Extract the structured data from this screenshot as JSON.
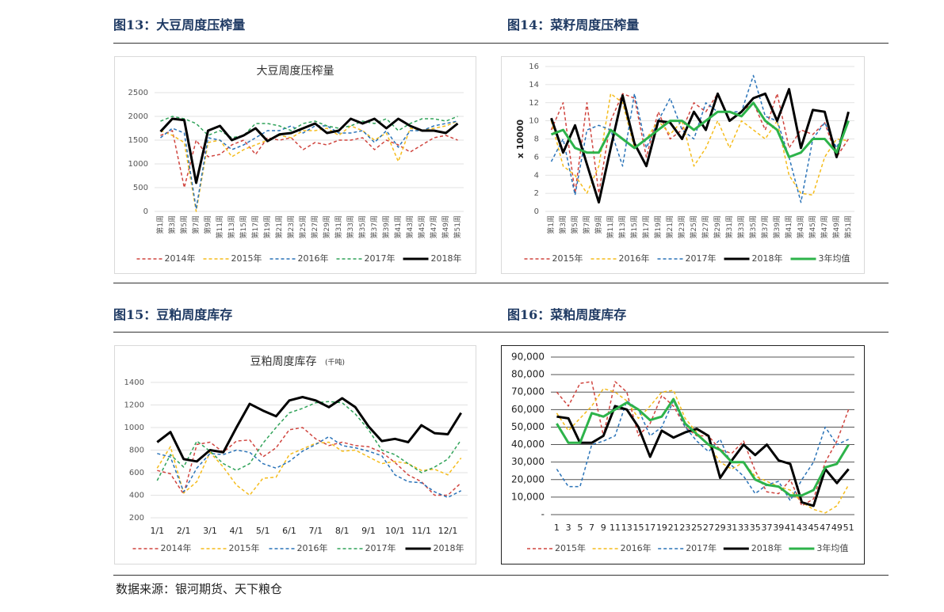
{
  "captions": [
    "图13：大豆周度压榨量",
    "图14：菜籽周度压榨量",
    "图15：豆粕周度库存",
    "图16：菜粕周度库存"
  ],
  "source": "数据来源：银河期货、天下粮仓",
  "chart_data": [
    {
      "type": "line",
      "title": "大豆周度压榨量",
      "categories": [
        "第1周",
        "第3周",
        "第5周",
        "第7周",
        "第9周",
        "第11周",
        "第13周",
        "第15周",
        "第17周",
        "第19周",
        "第21周",
        "第23周",
        "第25周",
        "第27周",
        "第29周",
        "第31周",
        "第33周",
        "第35周",
        "第37周",
        "第39周",
        "第41周",
        "第43周",
        "第45周",
        "第47周",
        "第49周",
        "第51周"
      ],
      "ylim": [
        0,
        2500
      ],
      "yticks": [
        0,
        500,
        1000,
        1500,
        2000,
        2500
      ],
      "grid": true,
      "series": [
        {
          "name": "2014年",
          "color": "#d0453f",
          "dashed": true,
          "values": [
            1600,
            1700,
            500,
            1500,
            1150,
            1200,
            1400,
            1500,
            1200,
            1550,
            1500,
            1550,
            1300,
            1450,
            1400,
            1500,
            1500,
            1550,
            1300,
            1500,
            1400,
            1250,
            1400,
            1550,
            1600,
            1500
          ]
        },
        {
          "name": "2015年",
          "color": "#f5bc1c",
          "dashed": true,
          "values": [
            1700,
            1600,
            1450,
            0,
            1450,
            1500,
            1150,
            1300,
            1400,
            1500,
            1600,
            1550,
            1700,
            1700,
            1750,
            1600,
            1800,
            1700,
            1500,
            1650,
            1050,
            1750,
            1700,
            1750,
            1800,
            1900
          ]
        },
        {
          "name": "2016年",
          "color": "#2a73b8",
          "dashed": true,
          "values": [
            1550,
            1750,
            1650,
            50,
            1550,
            1500,
            1300,
            1400,
            1550,
            1700,
            1700,
            1800,
            1650,
            1800,
            1800,
            1650,
            1650,
            1700,
            1450,
            1700,
            1350,
            1700,
            1700,
            1800,
            1850,
            1900
          ]
        },
        {
          "name": "2017年",
          "color": "#31a35a",
          "dashed": true,
          "values": [
            1900,
            2000,
            1950,
            1850,
            1600,
            1700,
            1550,
            1600,
            1850,
            1850,
            1800,
            1700,
            1850,
            1900,
            1800,
            1750,
            1800,
            1900,
            1850,
            1950,
            1700,
            1850,
            1950,
            1950,
            1900,
            2000
          ]
        },
        {
          "name": "2018年",
          "color": "#000000",
          "dashed": false,
          "values": [
            1680,
            1950,
            1920,
            600,
            1700,
            1800,
            1500,
            1600,
            1750,
            1480,
            1620,
            1650,
            1750,
            1850,
            1650,
            1700,
            1950,
            1850,
            1950,
            1750,
            1950,
            1800,
            1700,
            1700,
            1650,
            1850
          ]
        }
      ]
    },
    {
      "type": "line",
      "y_label": "x 10000",
      "categories": [
        "第1周",
        "第3周",
        "第5周",
        "第7周",
        "第9周",
        "第11周",
        "第13周",
        "第15周",
        "第17周",
        "第19周",
        "第21周",
        "第23周",
        "第25周",
        "第27周",
        "第29周",
        "第31周",
        "第33周",
        "第35周",
        "第37周",
        "第39周",
        "第41周",
        "第43周",
        "第45周",
        "第47周",
        "第49周",
        "第51周"
      ],
      "ylim": [
        0,
        16
      ],
      "yticks": [
        0,
        2,
        4,
        6,
        8,
        10,
        12,
        14,
        16
      ],
      "grid": true,
      "series": [
        {
          "name": "2015年",
          "color": "#d0453f",
          "dashed": true,
          "values": [
            9,
            12,
            2,
            12,
            2,
            10,
            13,
            12.5,
            6,
            11,
            8,
            9,
            12,
            11,
            13,
            10,
            11,
            12,
            9,
            13,
            7,
            9,
            8.5,
            9.8,
            6,
            8
          ]
        },
        {
          "name": "2016年",
          "color": "#f5bc1c",
          "dashed": true,
          "values": [
            10,
            5,
            4,
            2,
            5,
            13,
            12,
            7,
            8,
            10,
            8.5,
            10,
            5,
            7,
            10,
            7,
            10,
            9,
            8,
            10,
            4,
            2,
            1.8,
            6,
            8,
            7.8
          ]
        },
        {
          "name": "2017年",
          "color": "#2a73b8",
          "dashed": true,
          "values": [
            5.5,
            8,
            1.8,
            9,
            9.5,
            9,
            5,
            13,
            7,
            10,
            12.5,
            9,
            8,
            12,
            11,
            11,
            11,
            15,
            10.5,
            10,
            6,
            1,
            8,
            9.8,
            7,
            10
          ]
        },
        {
          "name": "2018年",
          "color": "#000000",
          "dashed": false,
          "values": [
            10.3,
            6.5,
            9.5,
            5.2,
            1,
            7,
            12.8,
            7.5,
            5,
            10,
            9.8,
            8,
            11,
            9,
            13,
            10,
            11,
            12.5,
            13,
            10,
            13.5,
            7,
            11.2,
            11,
            6,
            11
          ]
        },
        {
          "name": "3年均值",
          "color": "#2db34a",
          "dashed": false,
          "values": [
            8.5,
            9,
            7,
            6.5,
            6.5,
            9,
            8,
            7,
            8,
            9,
            10,
            10,
            9,
            10,
            11,
            11,
            10.5,
            12,
            10,
            9,
            6,
            6.5,
            8,
            8,
            6.5,
            10
          ]
        }
      ]
    },
    {
      "type": "line",
      "title": "豆粕周度库存",
      "subtitle": "(千吨)",
      "categories": [
        "1/1",
        null,
        "2/1",
        null,
        "3/1",
        null,
        "4/1",
        null,
        "5/1",
        null,
        "6/1",
        null,
        "7/1",
        null,
        "8/1",
        null,
        "9/1",
        null,
        "10/1",
        null,
        "11/1",
        null,
        "12/1",
        null
      ],
      "ylim": [
        200,
        1400
      ],
      "yticks": [
        200,
        400,
        600,
        800,
        1000,
        1200,
        1400
      ],
      "grid": true,
      "series": [
        {
          "name": "2014年",
          "color": "#d0453f",
          "dashed": true,
          "values": [
            620,
            590,
            410,
            850,
            870,
            780,
            880,
            890,
            740,
            820,
            980,
            1000,
            900,
            840,
            870,
            840,
            830,
            780,
            690,
            580,
            520,
            400,
            400,
            510
          ]
        },
        {
          "name": "2015年",
          "color": "#f5bc1c",
          "dashed": true,
          "values": [
            640,
            830,
            420,
            520,
            780,
            650,
            490,
            400,
            550,
            560,
            760,
            810,
            860,
            870,
            790,
            800,
            740,
            680,
            700,
            680,
            620,
            630,
            580,
            730
          ]
        },
        {
          "name": "2016年",
          "color": "#2a73b8",
          "dashed": true,
          "values": [
            770,
            740,
            430,
            640,
            770,
            760,
            800,
            780,
            680,
            640,
            700,
            790,
            850,
            920,
            840,
            820,
            790,
            750,
            580,
            520,
            510,
            430,
            380,
            440
          ]
        },
        {
          "name": "2017年",
          "color": "#31a35a",
          "dashed": true,
          "values": [
            530,
            760,
            650,
            880,
            790,
            680,
            620,
            680,
            860,
            1000,
            1130,
            1170,
            1220,
            1230,
            1220,
            1120,
            980,
            800,
            760,
            680,
            600,
            650,
            720,
            890
          ]
        },
        {
          "name": "2018年",
          "color": "#000000",
          "dashed": false,
          "values": [
            870,
            960,
            720,
            700,
            800,
            780,
            1000,
            1210,
            1150,
            1100,
            1240,
            1270,
            1240,
            1180,
            1260,
            1180,
            1010,
            880,
            900,
            870,
            1020,
            950,
            940,
            1130
          ]
        }
      ]
    },
    {
      "type": "line",
      "categories": [
        "1",
        "3",
        "5",
        "7",
        "9",
        "11",
        "13",
        "15",
        "17",
        "19",
        "21",
        "23",
        "25",
        "27",
        "29",
        "31",
        "33",
        "35",
        "37",
        "39",
        "41",
        "43",
        "45",
        "47",
        "49",
        "51"
      ],
      "ylim": [
        0,
        90000
      ],
      "yticks": [
        {
          "value": 0,
          "label": "-"
        },
        {
          "value": 10000,
          "label": "10,000"
        },
        {
          "value": 20000,
          "label": "20,000"
        },
        {
          "value": 30000,
          "label": "30,000"
        },
        {
          "value": 40000,
          "label": "40,000"
        },
        {
          "value": 50000,
          "label": "50,000"
        },
        {
          "value": 60000,
          "label": "60,000"
        },
        {
          "value": 70000,
          "label": "70,000"
        },
        {
          "value": 80000,
          "label": "80,000"
        },
        {
          "value": 90000,
          "label": "90,000"
        }
      ],
      "grid": true,
      "series": [
        {
          "name": "2015年",
          "color": "#d0453f",
          "dashed": true,
          "values": [
            70000,
            62000,
            75000,
            76000,
            45000,
            76000,
            70000,
            45000,
            52000,
            68000,
            62000,
            50000,
            45000,
            45000,
            37000,
            35000,
            42000,
            25000,
            13000,
            12000,
            20000,
            5000,
            9000,
            30000,
            42000,
            60000
          ]
        },
        {
          "name": "2016年",
          "color": "#f5bc1c",
          "dashed": true,
          "values": [
            58000,
            48000,
            55000,
            62000,
            72000,
            70000,
            65000,
            55000,
            62000,
            70000,
            71000,
            55000,
            47000,
            40000,
            30000,
            26000,
            30000,
            22000,
            19000,
            16000,
            14000,
            7000,
            3000,
            1000,
            5000,
            17000
          ]
        },
        {
          "name": "2017年",
          "color": "#2a73b8",
          "dashed": true,
          "values": [
            26000,
            16000,
            16000,
            40000,
            42000,
            45000,
            65000,
            60000,
            45000,
            50000,
            65000,
            50000,
            42000,
            36000,
            43000,
            28000,
            22000,
            12000,
            17000,
            19000,
            8000,
            20000,
            30000,
            50000,
            40000,
            43000
          ]
        },
        {
          "name": "2018年",
          "color": "#000000",
          "dashed": false,
          "values": [
            56000,
            55000,
            41000,
            41000,
            45000,
            62000,
            60000,
            50000,
            33000,
            48000,
            44000,
            47000,
            49000,
            45000,
            21000,
            31000,
            40000,
            34000,
            40000,
            31000,
            29000,
            7000,
            5000,
            26000,
            18000,
            26000
          ]
        },
        {
          "name": "3年均值",
          "color": "#2db34a",
          "dashed": false,
          "values": [
            52000,
            41000,
            41000,
            58000,
            56000,
            60000,
            64000,
            60000,
            54000,
            56000,
            66000,
            52000,
            46000,
            40000,
            37000,
            30000,
            30000,
            20000,
            17000,
            16000,
            11000,
            11000,
            14000,
            27000,
            29000,
            40000
          ]
        }
      ]
    }
  ]
}
